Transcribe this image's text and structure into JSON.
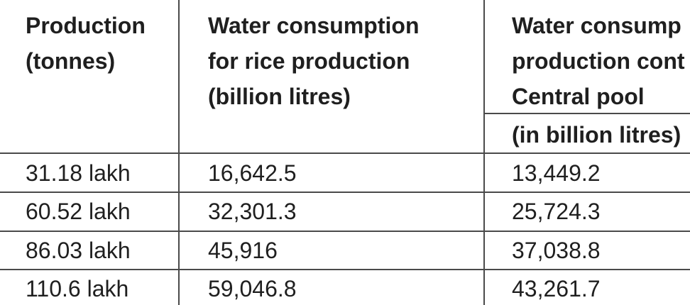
{
  "table": {
    "headers": [
      {
        "lines": [
          "Production",
          "(tonnes)"
        ]
      },
      {
        "lines": [
          "Water consumption",
          "for rice production",
          "(billion litres)"
        ]
      },
      {
        "lines": [
          "Water consump",
          "production cont",
          "Central pool"
        ]
      }
    ],
    "subheader": "(in billion litres)",
    "rows": [
      [
        "31.18 lakh",
        "16,642.5",
        "13,449.2"
      ],
      [
        "60.52 lakh",
        "32,301.3",
        "25,724.3"
      ],
      [
        "86.03 lakh",
        "45,916",
        "37,038.8"
      ],
      [
        "110.6 lakh",
        "59,046.8",
        "43,261.7"
      ]
    ]
  }
}
